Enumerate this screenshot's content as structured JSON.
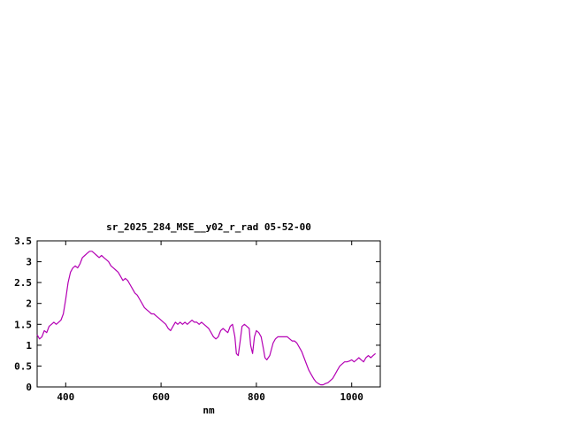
{
  "chart_data": {
    "type": "line",
    "title": "sr_2025_284_MSE__y02_r_rad 05-52-00",
    "xlabel": "nm",
    "ylabel": "",
    "xlim": [
      340,
      1060
    ],
    "ylim": [
      0,
      3.5
    ],
    "grid": false,
    "legend": "none",
    "line_color": "#b400b4",
    "x_ticks": [
      {
        "value": 400,
        "label": "400"
      },
      {
        "value": 600,
        "label": "600"
      },
      {
        "value": 800,
        "label": "800"
      },
      {
        "value": 1000,
        "label": "1000"
      }
    ],
    "y_ticks": [
      {
        "value": 0,
        "label": "0"
      },
      {
        "value": 0.5,
        "label": "0.5"
      },
      {
        "value": 1,
        "label": "1"
      },
      {
        "value": 1.5,
        "label": "1.5"
      },
      {
        "value": 2,
        "label": "2"
      },
      {
        "value": 2.5,
        "label": "2.5"
      },
      {
        "value": 3,
        "label": "3"
      },
      {
        "value": 3.5,
        "label": "3.5"
      }
    ],
    "x": [
      340,
      345,
      350,
      355,
      360,
      365,
      370,
      375,
      380,
      385,
      390,
      395,
      400,
      405,
      410,
      415,
      420,
      425,
      430,
      435,
      440,
      445,
      450,
      455,
      460,
      465,
      470,
      475,
      480,
      485,
      490,
      495,
      500,
      505,
      510,
      515,
      520,
      525,
      530,
      535,
      540,
      545,
      550,
      555,
      560,
      565,
      570,
      575,
      580,
      585,
      590,
      595,
      600,
      605,
      610,
      615,
      620,
      625,
      630,
      635,
      640,
      645,
      650,
      655,
      660,
      665,
      670,
      675,
      680,
      685,
      690,
      695,
      700,
      705,
      710,
      715,
      720,
      725,
      730,
      735,
      740,
      745,
      750,
      755,
      758,
      762,
      766,
      770,
      775,
      780,
      785,
      788,
      792,
      796,
      800,
      805,
      810,
      815,
      818,
      822,
      828,
      835,
      840,
      845,
      850,
      855,
      860,
      865,
      870,
      875,
      880,
      885,
      890,
      895,
      900,
      905,
      910,
      915,
      920,
      925,
      930,
      935,
      940,
      945,
      950,
      955,
      960,
      965,
      970,
      975,
      980,
      985,
      990,
      995,
      1000,
      1005,
      1010,
      1015,
      1020,
      1025,
      1030,
      1035,
      1040,
      1045,
      1050
    ],
    "values": [
      1.25,
      1.15,
      1.2,
      1.35,
      1.3,
      1.45,
      1.5,
      1.55,
      1.5,
      1.55,
      1.6,
      1.75,
      2.1,
      2.5,
      2.75,
      2.85,
      2.9,
      2.85,
      2.95,
      3.1,
      3.15,
      3.2,
      3.25,
      3.25,
      3.2,
      3.15,
      3.1,
      3.15,
      3.1,
      3.05,
      3.0,
      2.9,
      2.85,
      2.8,
      2.75,
      2.65,
      2.55,
      2.6,
      2.55,
      2.45,
      2.35,
      2.25,
      2.2,
      2.1,
      2.0,
      1.9,
      1.85,
      1.8,
      1.75,
      1.75,
      1.7,
      1.65,
      1.6,
      1.55,
      1.5,
      1.4,
      1.35,
      1.45,
      1.55,
      1.5,
      1.55,
      1.5,
      1.55,
      1.5,
      1.55,
      1.6,
      1.55,
      1.55,
      1.5,
      1.55,
      1.5,
      1.45,
      1.4,
      1.3,
      1.2,
      1.15,
      1.2,
      1.35,
      1.4,
      1.35,
      1.3,
      1.45,
      1.5,
      1.2,
      0.8,
      0.75,
      1.1,
      1.45,
      1.5,
      1.45,
      1.4,
      1.0,
      0.8,
      1.2,
      1.35,
      1.3,
      1.2,
      0.9,
      0.7,
      0.65,
      0.75,
      1.05,
      1.15,
      1.2,
      1.2,
      1.2,
      1.2,
      1.2,
      1.15,
      1.1,
      1.1,
      1.05,
      0.95,
      0.85,
      0.7,
      0.55,
      0.4,
      0.3,
      0.2,
      0.12,
      0.08,
      0.05,
      0.05,
      0.08,
      0.1,
      0.15,
      0.2,
      0.3,
      0.4,
      0.5,
      0.55,
      0.6,
      0.6,
      0.62,
      0.65,
      0.6,
      0.65,
      0.7,
      0.65,
      0.6,
      0.7,
      0.75,
      0.7,
      0.75,
      0.8
    ]
  }
}
